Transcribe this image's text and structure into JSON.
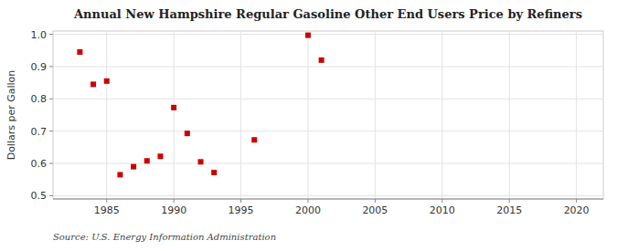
{
  "chart_data": {
    "type": "scatter",
    "title": "Annual New Hampshire Regular Gasoline Other End Users Price by Refiners",
    "y_label": "Dollars per Gallon",
    "annotations": [
      "Source: U.S. Energy Information Administration"
    ],
    "x": [
      1983,
      1984,
      1985,
      1986,
      1987,
      1988,
      1989,
      1990,
      1991,
      1992,
      1993,
      1996,
      2000,
      2001
    ],
    "values": [
      0.945,
      0.845,
      0.855,
      0.565,
      0.59,
      0.608,
      0.622,
      0.773,
      0.693,
      0.605,
      0.572,
      0.673,
      0.997,
      0.92
    ],
    "color": "#cc0000",
    "marker": "square",
    "xlim": [
      1981,
      2022
    ],
    "ylim": [
      0.49,
      1.01
    ],
    "xticks": [
      1985,
      1990,
      1995,
      2000,
      2005,
      2010,
      2015,
      2020
    ],
    "yticks": [
      0.5,
      0.6,
      0.7,
      0.8,
      0.9,
      {
        "value": 1.0,
        "label": "1.0"
      }
    ],
    "grid": true
  }
}
